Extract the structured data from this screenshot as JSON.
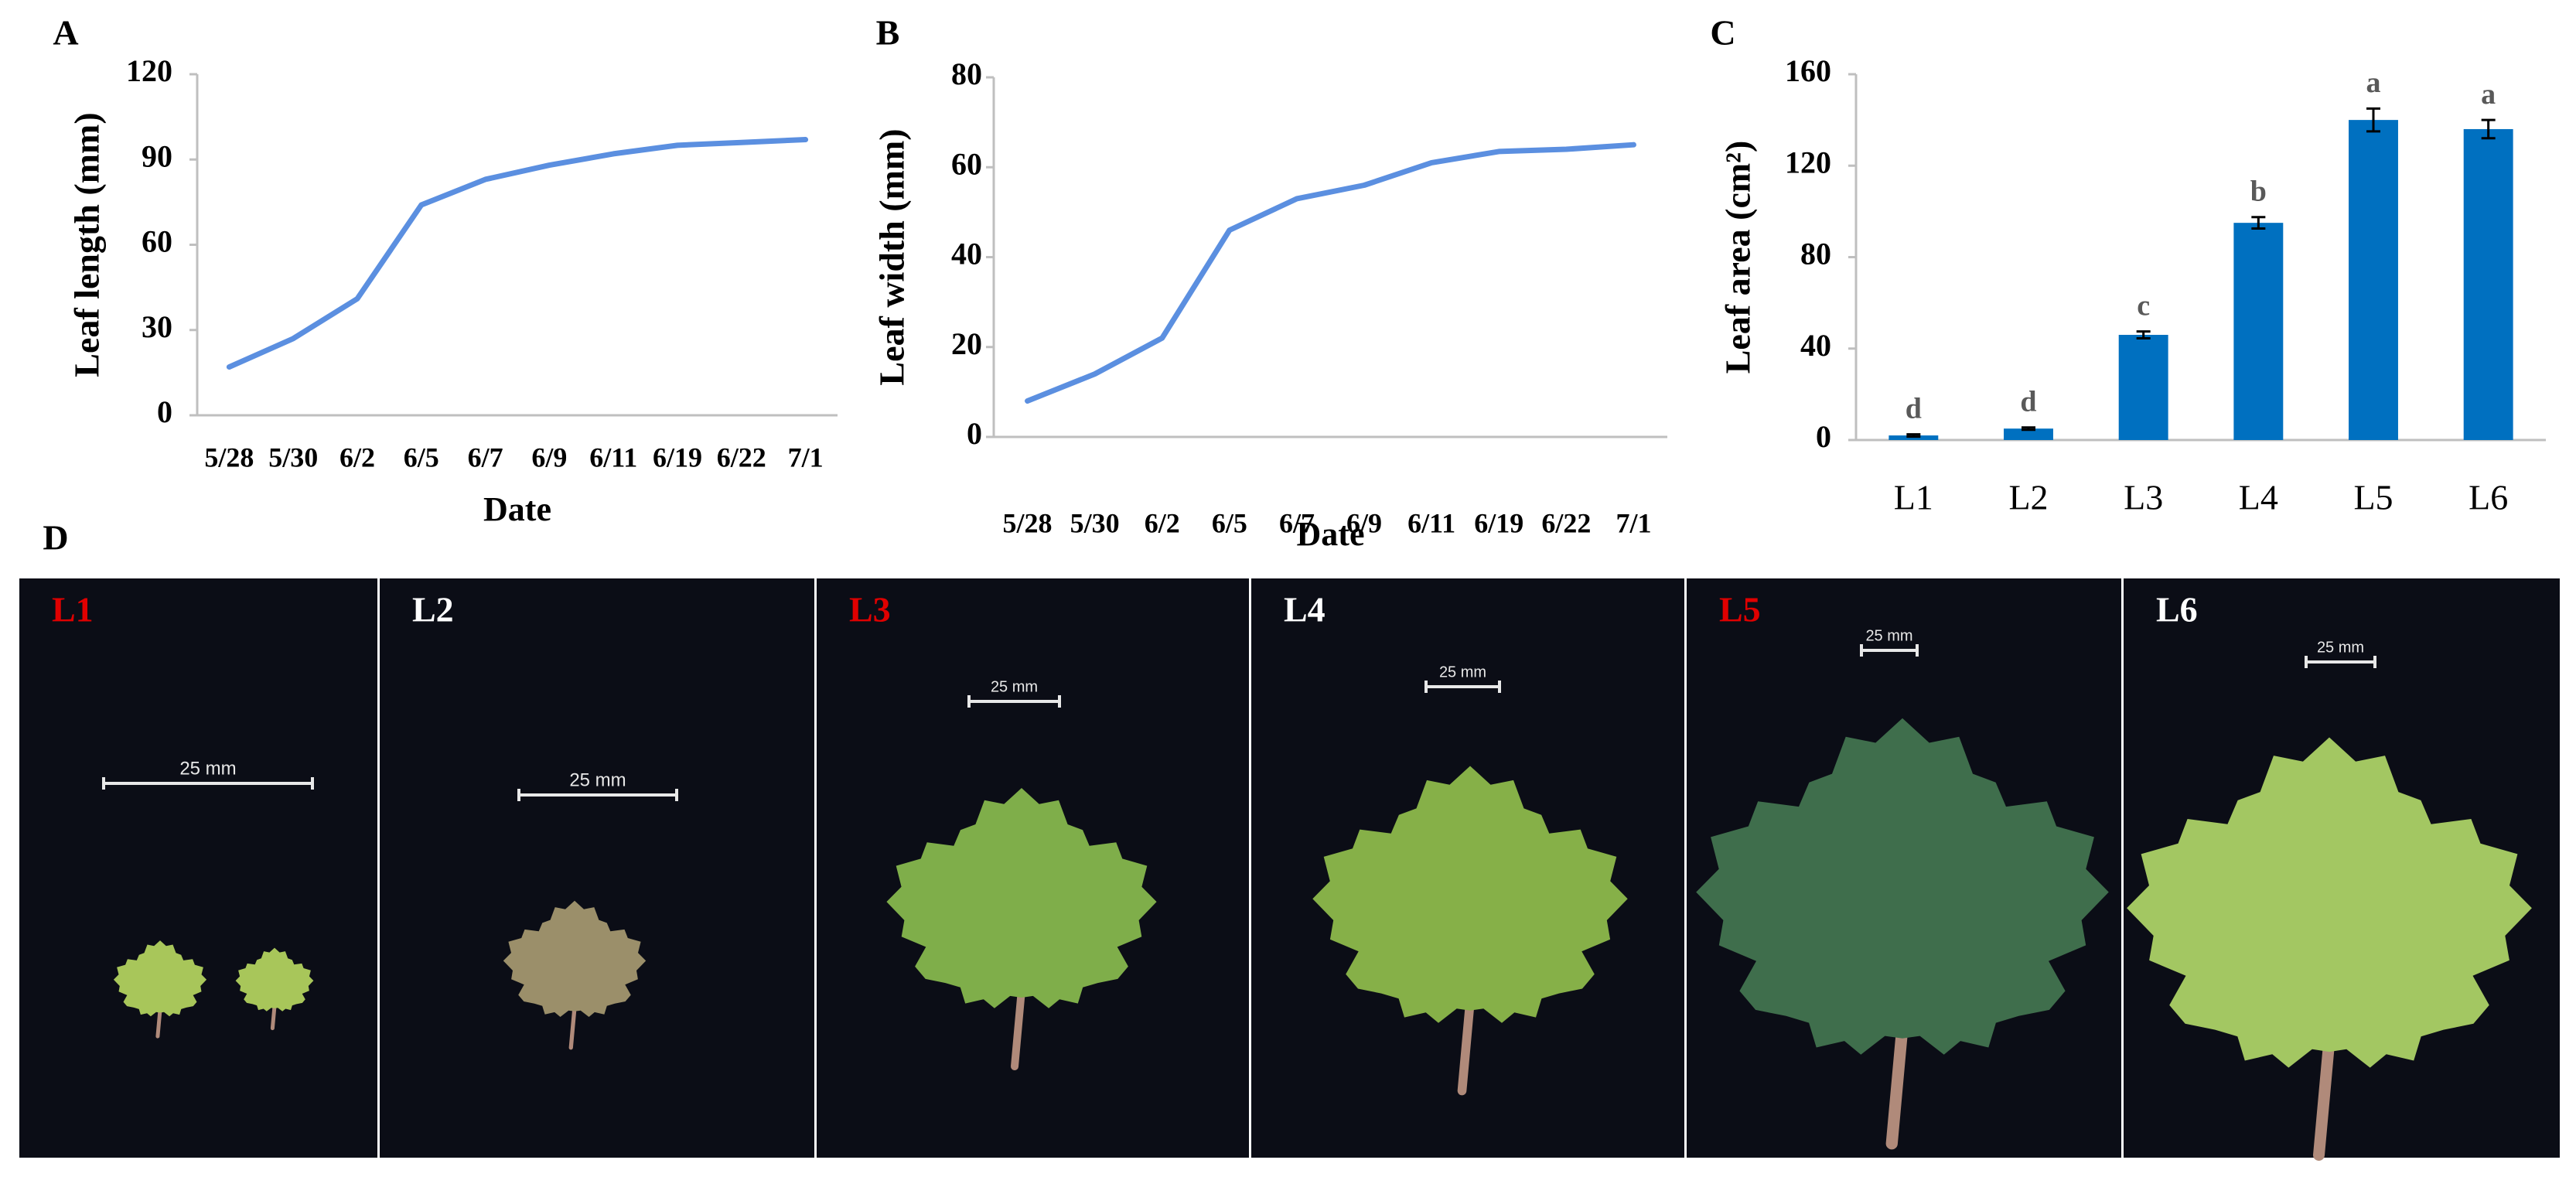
{
  "chart_data": [
    {
      "type": "line",
      "panel": "A",
      "xlabel": "Date",
      "ylabel": "Leaf length (mm)",
      "categories": [
        "5/28",
        "5/30",
        "6/2",
        "6/5",
        "6/7",
        "6/9",
        "6/11",
        "6/19",
        "6/22",
        "7/1"
      ],
      "values": [
        17,
        27,
        41,
        74,
        83,
        88,
        92,
        95,
        96,
        97
      ],
      "color": "#5b8fe0",
      "ylim": [
        0,
        120
      ],
      "yticks": [
        0,
        30,
        60,
        90,
        120
      ]
    },
    {
      "type": "line",
      "panel": "B",
      "xlabel": "Date",
      "ylabel": "Leaf width (mm)",
      "categories": [
        "5/28",
        "5/30",
        "6/2",
        "6/5",
        "6/7",
        "6/9",
        "6/11",
        "6/19",
        "6/22",
        "7/1"
      ],
      "values": [
        8,
        14,
        22,
        46,
        53,
        56,
        61,
        63.5,
        64,
        65
      ],
      "color": "#5b8fe0",
      "ylim": [
        0,
        80
      ],
      "yticks": [
        0,
        20,
        40,
        60,
        80
      ]
    },
    {
      "type": "bar",
      "panel": "C",
      "ylabel": "Leaf area (cm²)",
      "categories": [
        "L1",
        "L2",
        "L3",
        "L4",
        "L5",
        "L6"
      ],
      "values": [
        2,
        5,
        46,
        95,
        140,
        136
      ],
      "errors": [
        0.5,
        0.5,
        1.5,
        2.5,
        5,
        4
      ],
      "letters": [
        "d",
        "d",
        "c",
        "b",
        "a",
        "a"
      ],
      "color": "#0070c0",
      "ylim": [
        0,
        160
      ],
      "yticks": [
        0,
        40,
        80,
        120,
        160
      ]
    }
  ],
  "photos": {
    "panel": "D",
    "items": [
      {
        "label": "L1",
        "label_color": "#e00000",
        "scale_bar": "25 mm"
      },
      {
        "label": "L2",
        "label_color": "#ffffff",
        "scale_bar": "25 mm"
      },
      {
        "label": "L3",
        "label_color": "#e00000",
        "scale_bar": "25 mm"
      },
      {
        "label": "L4",
        "label_color": "#ffffff",
        "scale_bar": "25 mm"
      },
      {
        "label": "L5",
        "label_color": "#e00000",
        "scale_bar": "25 mm"
      },
      {
        "label": "L6",
        "label_color": "#ffffff",
        "scale_bar": "25 mm"
      }
    ]
  }
}
